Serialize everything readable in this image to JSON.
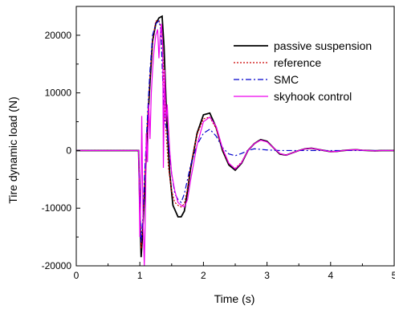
{
  "chart_data": {
    "type": "line",
    "title": "",
    "xlabel": "Time (s)",
    "ylabel": "Tire  dynamic  load (N)",
    "xlim": [
      0,
      5
    ],
    "ylim": [
      -20000,
      25000
    ],
    "xticks": [
      "0",
      "1",
      "2",
      "3",
      "4",
      "5"
    ],
    "yticks": [
      "-20000",
      "-10000",
      "0",
      "10000",
      "20000"
    ],
    "grid": false,
    "legend_position": "top-right",
    "series": [
      {
        "name": "passive suspension",
        "color": "#000000",
        "dash": "solid",
        "x": [
          0,
          0.98,
          1.0,
          1.02,
          1.04,
          1.08,
          1.12,
          1.16,
          1.2,
          1.25,
          1.3,
          1.35,
          1.38,
          1.42,
          1.47,
          1.52,
          1.56,
          1.6,
          1.65,
          1.7,
          1.75,
          1.8,
          1.9,
          2.0,
          2.1,
          2.2,
          2.3,
          2.4,
          2.5,
          2.6,
          2.7,
          2.8,
          2.9,
          3.0,
          3.1,
          3.2,
          3.3,
          3.4,
          3.5,
          3.6,
          3.7,
          3.8,
          3.9,
          4.0,
          4.1,
          4.2,
          4.3,
          4.4,
          4.5,
          4.6,
          4.7,
          4.8,
          4.9,
          5.0
        ],
        "y": [
          0,
          0,
          -10000,
          -18500,
          -15000,
          -6000,
          4000,
          12000,
          19000,
          22000,
          23000,
          23300,
          18000,
          6000,
          -4000,
          -9500,
          -10500,
          -11500,
          -11500,
          -10500,
          -7000,
          -3000,
          3000,
          6200,
          6500,
          4000,
          0,
          -2500,
          -3400,
          -2200,
          0,
          1200,
          1900,
          1600,
          500,
          -600,
          -800,
          -400,
          0,
          300,
          400,
          200,
          0,
          -200,
          -150,
          0,
          100,
          150,
          50,
          0,
          -50,
          0,
          0,
          0
        ]
      },
      {
        "name": "reference",
        "color": "#cc0000",
        "dash": "dotted",
        "x": [
          0,
          0.98,
          1.0,
          1.02,
          1.05,
          1.08,
          1.12,
          1.16,
          1.2,
          1.25,
          1.3,
          1.34,
          1.37,
          1.4,
          1.45,
          1.5,
          1.55,
          1.6,
          1.65,
          1.7,
          1.75,
          1.8,
          1.9,
          2.0,
          2.1,
          2.2,
          2.3,
          2.4,
          2.5,
          2.6,
          2.7,
          2.8,
          2.9,
          3.0,
          3.1,
          3.2,
          3.3,
          3.4,
          3.5,
          3.6,
          3.7,
          3.8,
          3.9,
          4.0,
          4.1,
          4.2,
          4.3,
          4.4,
          4.5,
          4.6,
          4.7,
          4.8,
          4.9,
          5.0
        ],
        "y": [
          0,
          0,
          -8000,
          -17000,
          -12000,
          -4000,
          5000,
          13000,
          19000,
          22500,
          22500,
          21000,
          15000,
          5000,
          -3000,
          -7000,
          -9000,
          -9500,
          -9800,
          -9200,
          -6500,
          -2500,
          2800,
          5500,
          5800,
          3800,
          200,
          -2300,
          -3100,
          -2000,
          0,
          1200,
          1800,
          1500,
          500,
          -500,
          -800,
          -400,
          0,
          300,
          400,
          200,
          0,
          -200,
          -150,
          0,
          100,
          150,
          50,
          0,
          -50,
          0,
          0,
          0
        ]
      },
      {
        "name": "SMC",
        "color": "#0000cc",
        "dash": "dashdot",
        "x": [
          0,
          0.98,
          1.0,
          1.02,
          1.05,
          1.08,
          1.12,
          1.16,
          1.2,
          1.25,
          1.3,
          1.33,
          1.36,
          1.39,
          1.42,
          1.46,
          1.5,
          1.55,
          1.6,
          1.65,
          1.7,
          1.75,
          1.8,
          1.9,
          2.0,
          2.1,
          2.2,
          2.3,
          2.4,
          2.5,
          2.6,
          2.7,
          2.8,
          2.9,
          3.0,
          3.2,
          3.4,
          3.6,
          3.8,
          4.0,
          4.5,
          5.0
        ],
        "y": [
          0,
          0,
          -8000,
          -16000,
          -11000,
          -3000,
          6000,
          14000,
          20000,
          22000,
          22500,
          21000,
          12000,
          5000,
          4000,
          0,
          -4000,
          -7500,
          -8500,
          -9000,
          -7500,
          -5000,
          -2500,
          1000,
          3000,
          3700,
          2500,
          500,
          -600,
          -900,
          -500,
          0,
          300,
          200,
          100,
          0,
          0,
          0,
          0,
          0,
          0,
          0
        ]
      },
      {
        "name": "skyhook control",
        "color": "#ee00ee",
        "dash": "solid",
        "x": [
          0,
          0.98,
          1.0,
          1.02,
          1.03,
          1.05,
          1.07,
          1.09,
          1.1,
          1.12,
          1.14,
          1.16,
          1.18,
          1.2,
          1.22,
          1.25,
          1.28,
          1.3,
          1.32,
          1.34,
          1.36,
          1.37,
          1.39,
          1.41,
          1.43,
          1.45,
          1.47,
          1.5,
          1.55,
          1.6,
          1.65,
          1.7,
          1.75,
          1.8,
          1.9,
          2.0,
          2.1,
          2.2,
          2.3,
          2.4,
          2.5,
          2.6,
          2.7,
          2.8,
          2.9,
          3.0,
          3.1,
          3.2,
          3.3,
          3.4,
          3.5,
          3.6,
          3.7,
          3.8,
          3.9,
          4.0,
          4.1,
          4.2,
          4.3,
          4.4,
          4.5,
          4.6,
          4.7,
          4.8,
          4.9,
          5.0
        ],
        "y": [
          0,
          0,
          -15000,
          -5000,
          6000,
          -12000,
          -20000,
          -9000,
          3000,
          -2000,
          8000,
          2000,
          10000,
          14000,
          17000,
          20000,
          21000,
          16000,
          20000,
          22000,
          18000,
          -3000,
          14000,
          5000,
          8000,
          4000,
          0,
          -4000,
          -7000,
          -9000,
          -9500,
          -9800,
          -8500,
          -5000,
          1000,
          5000,
          5800,
          4200,
          400,
          -2200,
          -3200,
          -2100,
          0,
          1200,
          1800,
          1500,
          500,
          -500,
          -800,
          -400,
          0,
          300,
          400,
          200,
          0,
          -200,
          -150,
          0,
          100,
          150,
          50,
          0,
          -50,
          0,
          0,
          0
        ]
      }
    ]
  }
}
